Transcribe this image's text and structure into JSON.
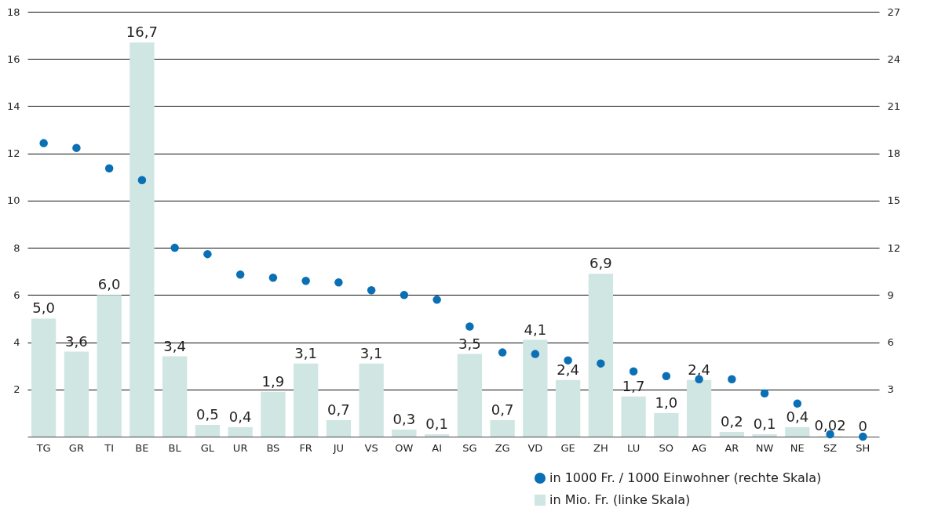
{
  "chart_data": {
    "type": "bar",
    "categories": [
      "TG",
      "GR",
      "TI",
      "BE",
      "BL",
      "GL",
      "UR",
      "BS",
      "FR",
      "JU",
      "VS",
      "OW",
      "AI",
      "SG",
      "ZG",
      "VD",
      "GE",
      "ZH",
      "LU",
      "SO",
      "AG",
      "AR",
      "NW",
      "NE",
      "SZ",
      "SH"
    ],
    "series": [
      {
        "name": "in 1000 Fr. / 1000 Einwohner (rechte Skala)",
        "type": "scatter",
        "axis": "y2",
        "color": "#0a6fb5",
        "values": [
          18.65,
          18.35,
          17.05,
          16.3,
          12.0,
          11.6,
          10.3,
          10.1,
          9.9,
          9.8,
          9.3,
          9.0,
          8.7,
          7.0,
          5.35,
          5.25,
          4.85,
          4.65,
          4.15,
          3.85,
          3.65,
          3.65,
          2.75,
          2.1,
          0.15,
          0
        ]
      },
      {
        "name": "in Mio. Fr. (linke Skala)",
        "color": "#cfe6e3",
        "values": [
          5.0,
          3.6,
          6.0,
          16.7,
          3.4,
          0.5,
          0.4,
          1.9,
          3.1,
          0.7,
          3.1,
          0.3,
          0.1,
          3.5,
          0.7,
          4.1,
          2.4,
          6.9,
          1.7,
          1.0,
          2.4,
          0.2,
          0.1,
          0.4,
          0.02,
          0
        ],
        "value_labels": [
          "5,0",
          "3,6",
          "6,0",
          "16,7",
          "3,4",
          "0,5",
          "0,4",
          "1,9",
          "3,1",
          "0,7",
          "3,1",
          "0,3",
          "0,1",
          "3,5",
          "0,7",
          "4,1",
          "2,4",
          "6,9",
          "1,7",
          "1,0",
          "2,4",
          "0,2",
          "0,1",
          "0,4",
          "0,02",
          "0"
        ]
      }
    ],
    "ylim": [
      0,
      18
    ],
    "yticks": [
      2,
      4,
      6,
      8,
      10,
      12,
      14,
      16,
      18
    ],
    "y2lim": [
      0,
      27
    ],
    "y2ticks": [
      3,
      6,
      9,
      12,
      15,
      18,
      21,
      24,
      27
    ],
    "grid": "y",
    "legend": "bottom right",
    "marker": "circle"
  }
}
